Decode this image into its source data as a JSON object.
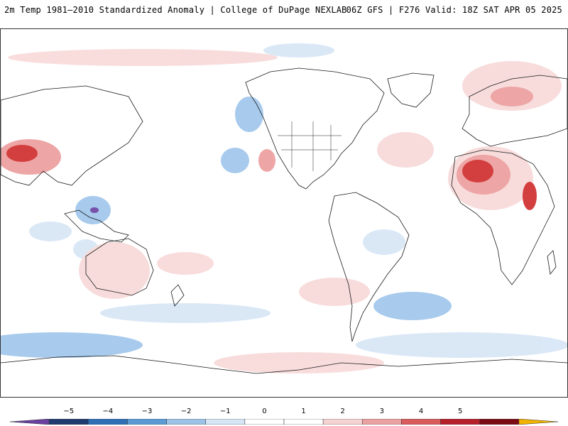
{
  "header": {
    "title": "2m Temp 1981–2010 Standardized Anomaly | College of DuPage NEXLAB",
    "run_info": "06Z GFS | F276 Valid: 18Z SAT APR 05 2025"
  },
  "legend": {
    "ticks": [
      "−5",
      "−4",
      "−3",
      "−2",
      "−1",
      "0",
      "1",
      "2",
      "3",
      "4",
      "5"
    ],
    "colors": [
      "#6a3fa0",
      "#1f3a6e",
      "#2f6fb5",
      "#5b9bd5",
      "#9cc3e6",
      "#d6e6f5",
      "#ffffff",
      "#ffffff",
      "#f6d3d3",
      "#eba1a1",
      "#d95b5b",
      "#b51f2a",
      "#7a0b14",
      "#f2b200"
    ]
  },
  "palette": {
    "warm_light": "#f8d9d9",
    "warm_mid": "#ec9c9c",
    "warm_strong": "#cf2a2a",
    "warm_dark": "#8e0f19",
    "cool_light": "#d7e6f6",
    "cool_mid": "#9ec5ec",
    "cool_strong": "#3f8fd6",
    "cool_dark": "#6a3fa0",
    "coast": "#1a1a1a"
  }
}
